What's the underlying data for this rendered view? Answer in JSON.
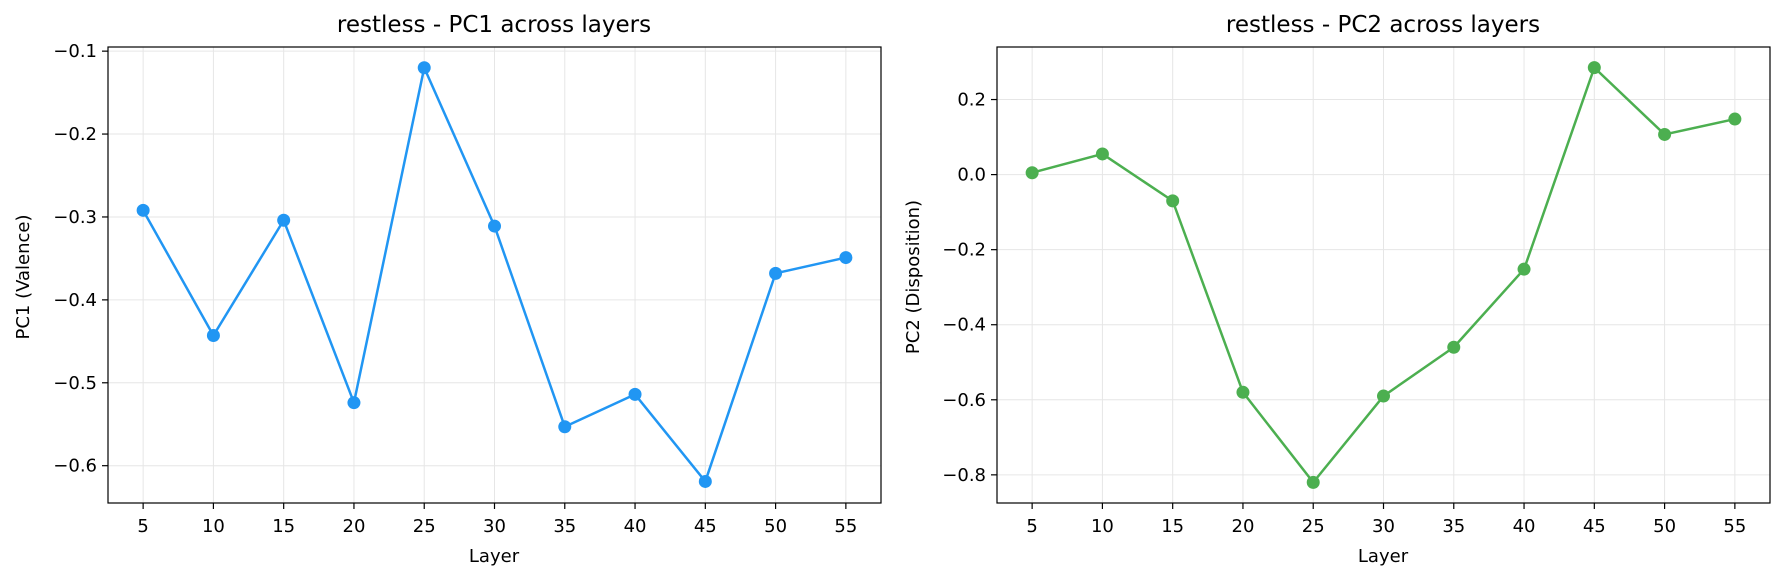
{
  "chart_data": [
    {
      "type": "line",
      "title": "restless - PC1 across layers",
      "xlabel": "Layer",
      "ylabel": "PC1 (Valence)",
      "x": [
        5,
        10,
        15,
        20,
        25,
        30,
        35,
        40,
        45,
        50,
        55
      ],
      "xticks": [
        "5",
        "10",
        "15",
        "20",
        "25",
        "30",
        "35",
        "40",
        "45",
        "50",
        "55"
      ],
      "series": [
        {
          "values": [
            -0.292,
            -0.443,
            -0.304,
            -0.524,
            -0.12,
            -0.311,
            -0.553,
            -0.514,
            -0.619,
            -0.368,
            -0.349
          ],
          "color": "#2196f3"
        }
      ],
      "yticks": [
        "−0.1",
        "−0.2",
        "−0.3",
        "−0.4",
        "−0.5",
        "−0.6"
      ],
      "ytick_values": [
        -0.1,
        -0.2,
        -0.3,
        -0.4,
        -0.5,
        -0.6
      ],
      "xlim": [
        2.5,
        57.5
      ],
      "ylim": [
        -0.645,
        -0.095
      ],
      "grid": true
    },
    {
      "type": "line",
      "title": "restless - PC2 across layers",
      "xlabel": "Layer",
      "ylabel": "PC2 (Disposition)",
      "x": [
        5,
        10,
        15,
        20,
        25,
        30,
        35,
        40,
        45,
        50,
        55
      ],
      "xticks": [
        "5",
        "10",
        "15",
        "20",
        "25",
        "30",
        "35",
        "40",
        "45",
        "50",
        "55"
      ],
      "series": [
        {
          "values": [
            0.005,
            0.055,
            -0.07,
            -0.58,
            -0.82,
            -0.59,
            -0.46,
            -0.252,
            0.285,
            0.107,
            0.148
          ],
          "color": "#4caf50"
        }
      ],
      "yticks": [
        "0.2",
        "0.0",
        "−0.2",
        "−0.4",
        "−0.6",
        "−0.8"
      ],
      "ytick_values": [
        0.2,
        0.0,
        -0.2,
        -0.4,
        -0.6,
        -0.8
      ],
      "xlim": [
        2.5,
        57.5
      ],
      "ylim": [
        -0.875,
        0.34
      ],
      "grid": true
    }
  ]
}
